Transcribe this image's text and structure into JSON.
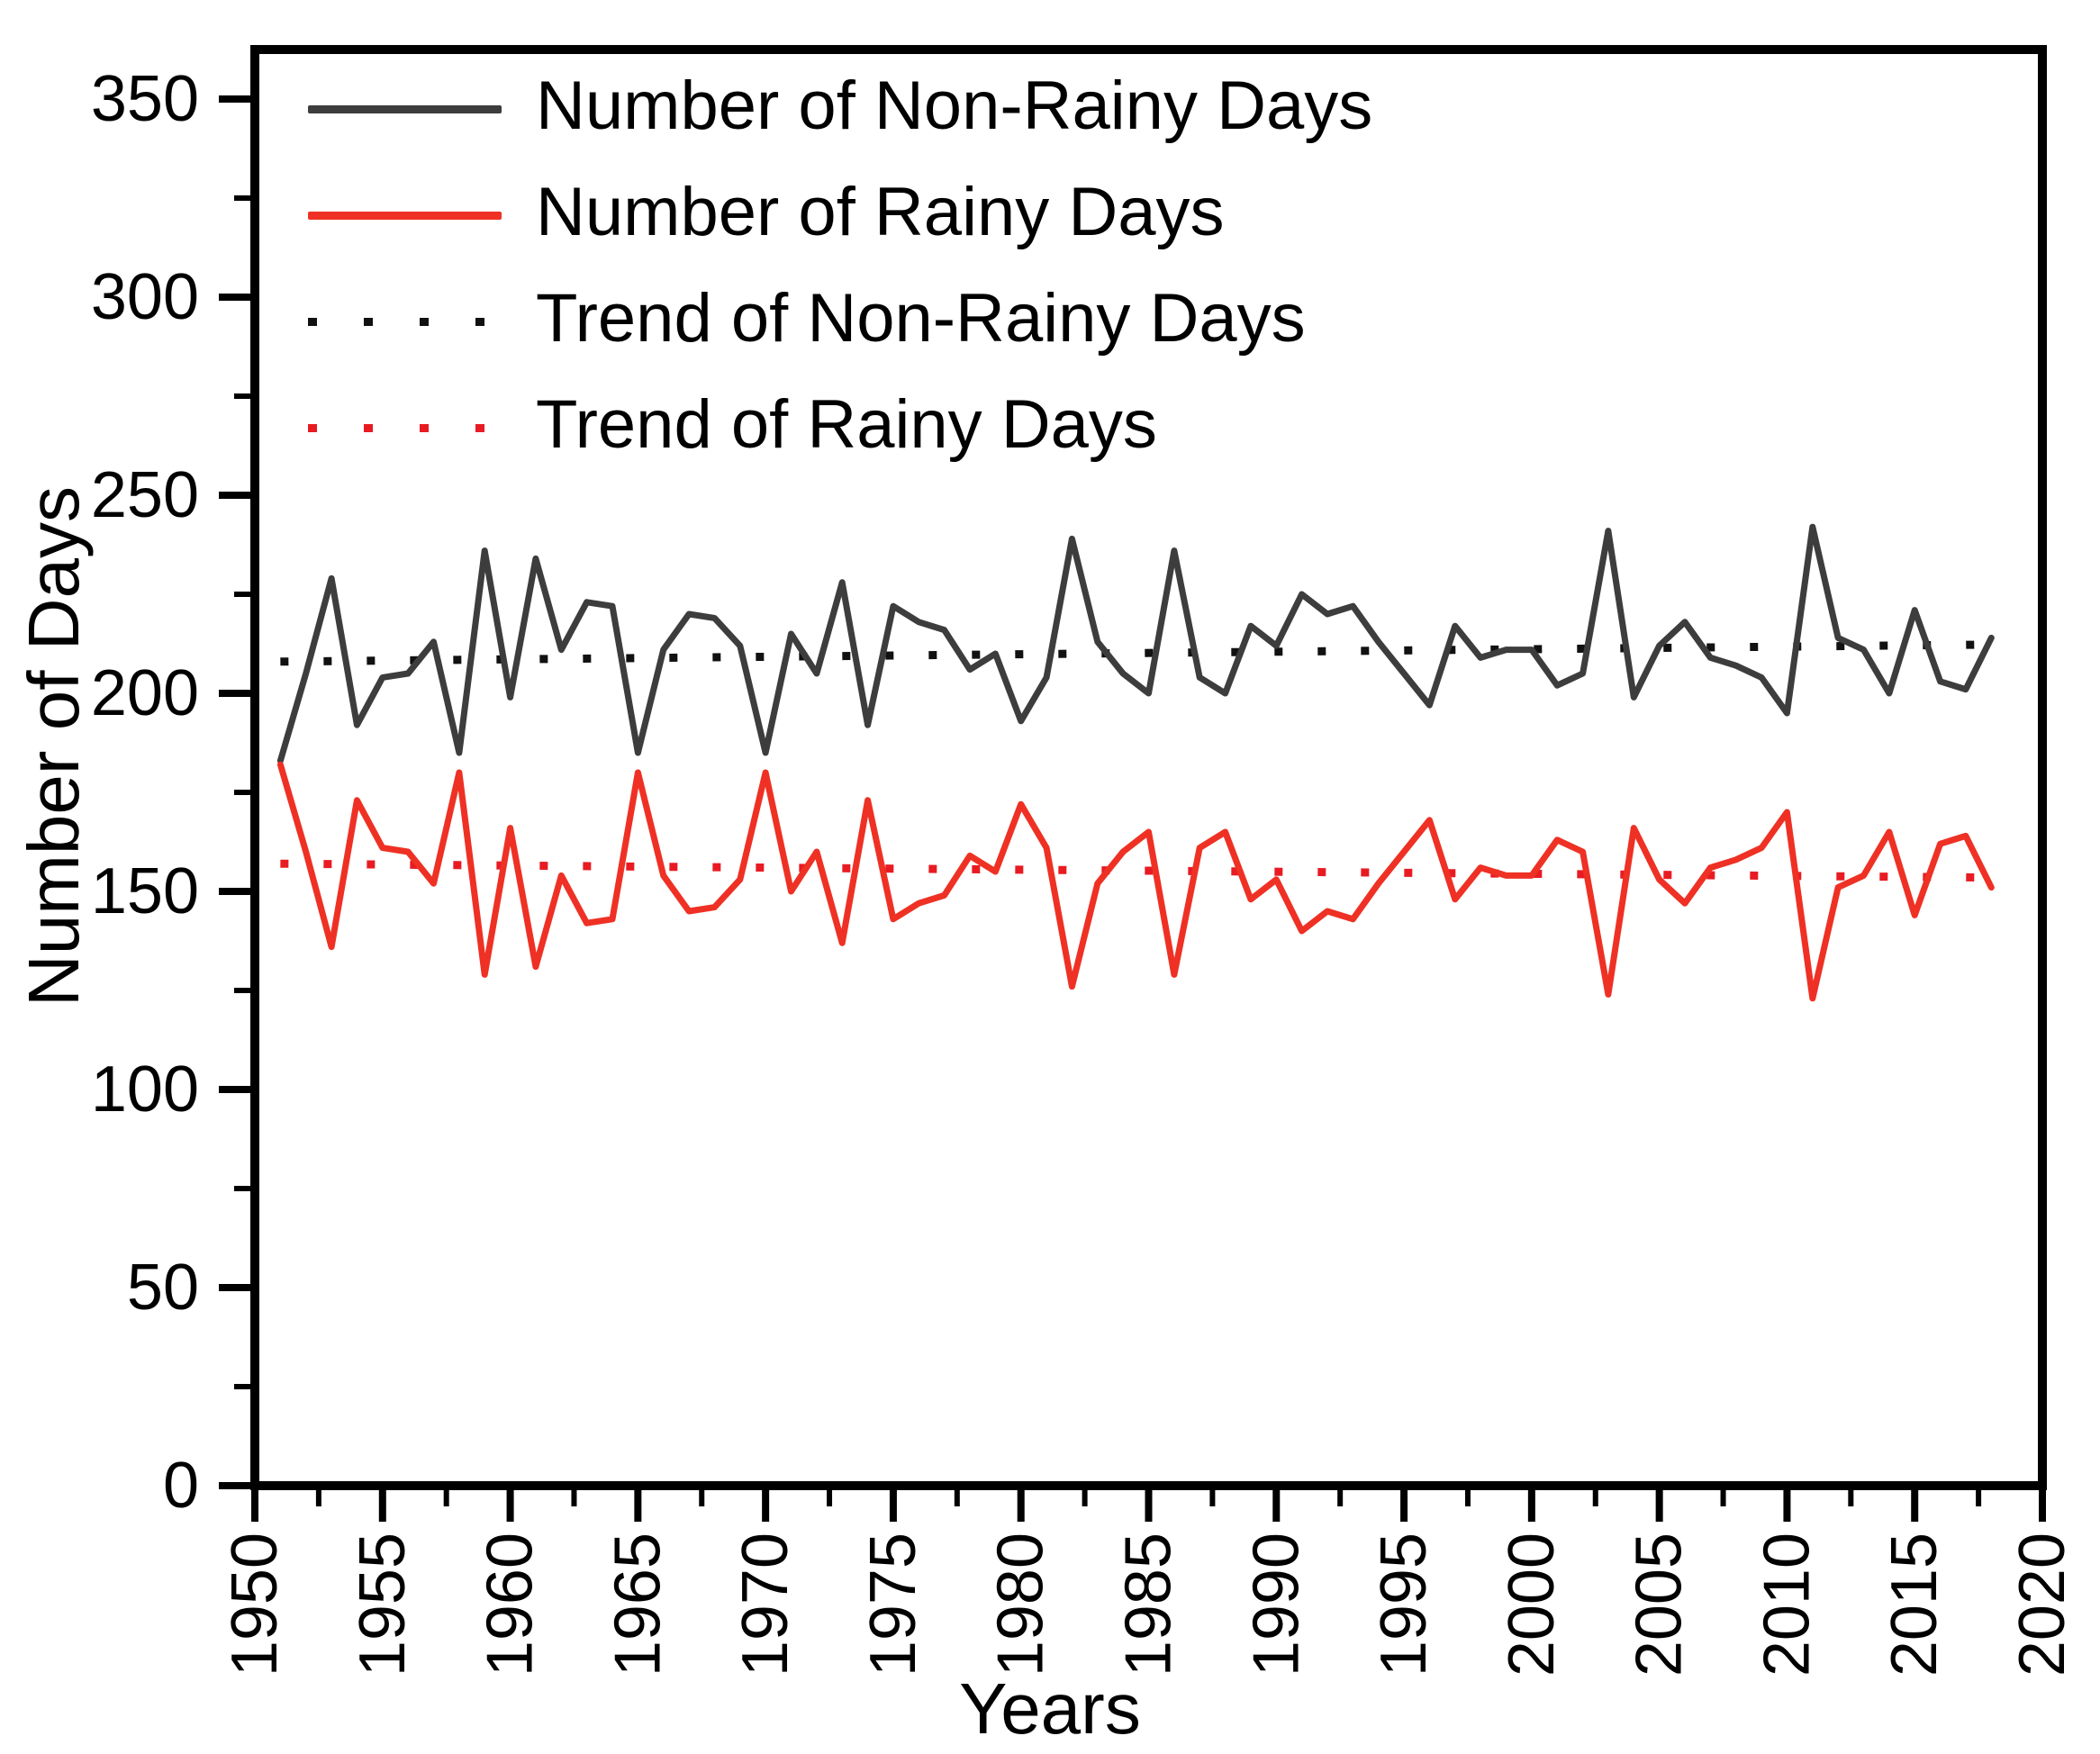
{
  "figure": {
    "background": "#ffffff",
    "axis_color": "#000000",
    "x_axis": {
      "title": "Years",
      "min": 1950,
      "max": 2020,
      "major_tick_step": 5,
      "minor_tick_step": 2.5
    },
    "y_axis": {
      "title": "Number of Days",
      "min": 0,
      "max": 362,
      "major_tick_step": 50,
      "minor_tick_step": 25
    }
  },
  "chart_data": {
    "type": "line",
    "xlabel": "Years",
    "ylabel": "Number of Days",
    "xlim": [
      1950,
      2020
    ],
    "ylim": [
      0,
      362
    ],
    "grid": false,
    "legend_position": "top-left",
    "x_major_ticks": [
      1950,
      1955,
      1960,
      1965,
      1970,
      1975,
      1980,
      1985,
      1990,
      1995,
      2000,
      2005,
      2010,
      2015,
      2020
    ],
    "y_major_ticks": [
      0,
      50,
      100,
      150,
      200,
      250,
      300,
      350
    ],
    "years": [
      1951,
      1952,
      1953,
      1954,
      1955,
      1956,
      1957,
      1958,
      1959,
      1960,
      1961,
      1962,
      1963,
      1964,
      1965,
      1966,
      1967,
      1968,
      1969,
      1970,
      1971,
      1972,
      1973,
      1974,
      1975,
      1976,
      1977,
      1978,
      1979,
      1980,
      1981,
      1982,
      1983,
      1984,
      1985,
      1986,
      1987,
      1988,
      1989,
      1990,
      1991,
      1992,
      1993,
      1994,
      1995,
      1996,
      1997,
      1998,
      1999,
      2000,
      2001,
      2002,
      2003,
      2004,
      2005,
      2006,
      2007,
      2008,
      2009,
      2010,
      2011,
      2012,
      2013,
      2014,
      2015,
      2016,
      2017,
      2018
    ],
    "series": [
      {
        "name": "Number of Non-Rainy Days",
        "kind": "data",
        "style": "solid",
        "color": "#3d3d3d",
        "values": [
          183,
          205,
          229,
          192,
          204,
          205,
          213,
          185,
          236,
          199,
          234,
          211,
          223,
          222,
          185,
          211,
          220,
          219,
          212,
          185,
          215,
          205,
          228,
          192,
          222,
          218,
          216,
          206,
          210,
          193,
          204,
          239,
          213,
          205,
          200,
          236,
          204,
          200,
          217,
          212,
          225,
          220,
          222,
          213,
          205,
          197,
          217,
          209,
          211,
          211,
          202,
          205,
          241,
          199,
          212,
          218,
          209,
          207,
          204,
          195,
          242,
          214,
          211,
          200,
          221,
          203,
          201,
          214
        ]
      },
      {
        "name": "Number of Rainy Days",
        "kind": "data",
        "style": "solid",
        "color": "#ee3124",
        "values": [
          182,
          160,
          136,
          173,
          161,
          160,
          152,
          180,
          129,
          166,
          131,
          154,
          142,
          143,
          180,
          154,
          145,
          146,
          153,
          180,
          150,
          160,
          137,
          173,
          143,
          147,
          149,
          159,
          155,
          172,
          161,
          126,
          152,
          160,
          165,
          129,
          161,
          165,
          148,
          153,
          140,
          145,
          143,
          152,
          160,
          168,
          148,
          156,
          154,
          154,
          163,
          160,
          124,
          166,
          153,
          147,
          156,
          158,
          161,
          170,
          123,
          151,
          154,
          165,
          144,
          162,
          164,
          151
        ]
      },
      {
        "name": "Trend of Non-Rainy Days",
        "kind": "trend",
        "style": "dotted",
        "color": "#111111",
        "trend": {
          "x_start": 1951,
          "x_end": 2018,
          "y_start": 208.0,
          "y_end": 212.3
        }
      },
      {
        "name": "Trend of Rainy Days",
        "kind": "trend",
        "style": "dotted",
        "color": "#e81b23",
        "trend": {
          "x_start": 1951,
          "x_end": 2018,
          "y_start": 157.0,
          "y_end": 153.5
        }
      }
    ]
  }
}
